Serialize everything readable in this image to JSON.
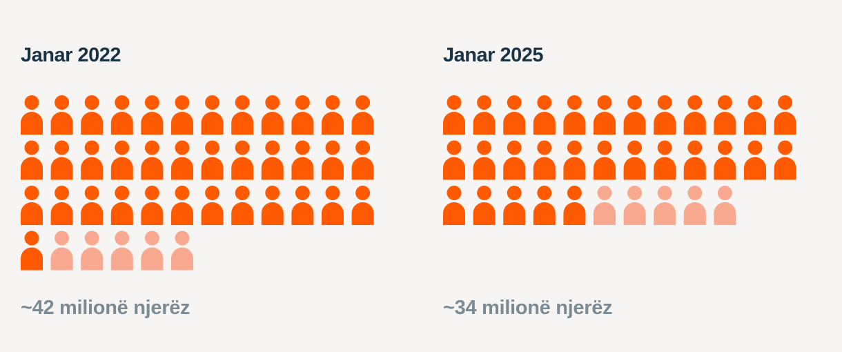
{
  "colors": {
    "filled": "#ff5a00",
    "faded": "#f8a98f",
    "title": "#1a3344",
    "caption": "#7a8b96",
    "background": "#f7f5f3"
  },
  "chart_data": [
    {
      "type": "pictogram",
      "title": "Janar 2022",
      "caption": "~42 milionë njerëz",
      "filled_icons": 37,
      "faded_icons": 5,
      "total_icons": 42,
      "icons_per_row": 12
    },
    {
      "type": "pictogram",
      "title": "Janar 2025",
      "caption": "~34 milionë njerëz",
      "filled_icons": 29,
      "faded_icons": 5,
      "total_icons": 34,
      "icons_per_row": 12
    }
  ]
}
